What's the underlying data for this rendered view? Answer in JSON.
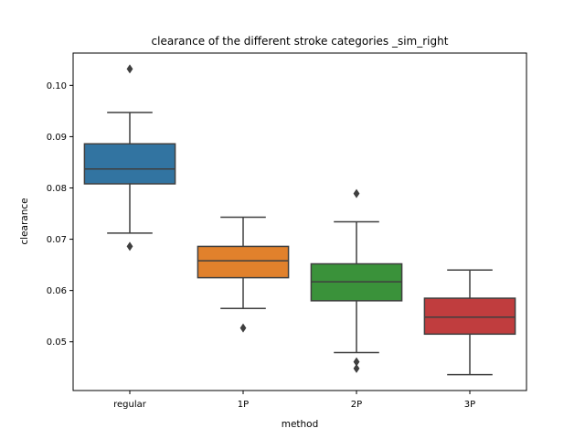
{
  "chart_data": {
    "type": "box",
    "title": "clearance of the different stroke categories _sim_right",
    "xlabel": "method",
    "ylabel": "clearance",
    "ylim": [
      0.0405,
      0.1063
    ],
    "yticks": [
      "0.05",
      "0.06",
      "0.07",
      "0.08",
      "0.09",
      "0.10"
    ],
    "ytick_values": [
      0.05,
      0.06,
      0.07,
      0.08,
      0.09,
      0.1
    ],
    "grid": false,
    "categories": [
      "regular",
      "1P",
      "2P",
      "3P"
    ],
    "boxes": [
      {
        "category": "regular",
        "color": "#3274a1",
        "whisker_low": 0.0712,
        "q1": 0.0808,
        "median": 0.0837,
        "q3": 0.0886,
        "whisker_high": 0.0947,
        "outliers": [
          0.1032,
          0.0686
        ]
      },
      {
        "category": "1P",
        "color": "#e1812c",
        "whisker_low": 0.0565,
        "q1": 0.0625,
        "median": 0.0658,
        "q3": 0.0686,
        "whisker_high": 0.0743,
        "outliers": [
          0.0527
        ]
      },
      {
        "category": "2P",
        "color": "#3a923a",
        "whisker_low": 0.0479,
        "q1": 0.058,
        "median": 0.0617,
        "q3": 0.0652,
        "whisker_high": 0.0734,
        "outliers": [
          0.0789,
          0.0461,
          0.0448
        ]
      },
      {
        "category": "3P",
        "color": "#c03d3e",
        "whisker_low": 0.0436,
        "q1": 0.0515,
        "median": 0.0548,
        "q3": 0.0585,
        "whisker_high": 0.064,
        "outliers": []
      }
    ]
  }
}
